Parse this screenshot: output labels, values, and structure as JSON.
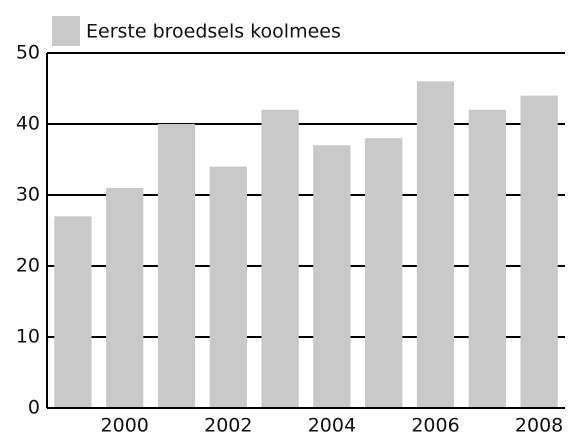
{
  "chart_data": {
    "type": "bar",
    "categories": [
      null,
      "2000",
      null,
      "2002",
      null,
      "2004",
      null,
      "2006",
      null,
      "2008"
    ],
    "series": [
      {
        "name": "Eerste broedsels koolmees",
        "color": "#c9c9c9",
        "values": [
          27,
          31,
          40,
          34,
          42,
          37,
          38,
          46,
          42,
          44
        ]
      }
    ],
    "ylim": [
      0,
      50
    ],
    "yticks": [
      0,
      10,
      20,
      30,
      40,
      50
    ],
    "grid": true,
    "legend": "top-left"
  }
}
